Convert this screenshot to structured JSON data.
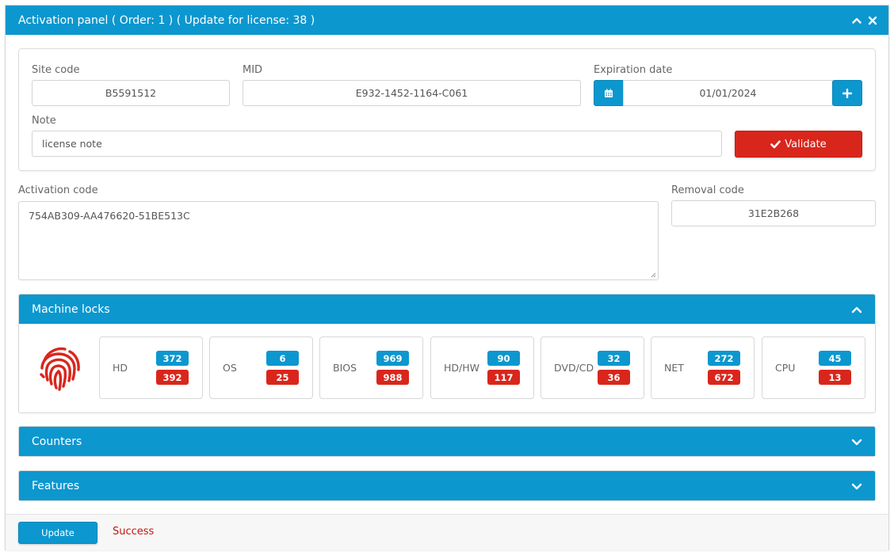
{
  "panel": {
    "title": "Activation panel ( Order: 1 ) ( Update for license: 38 )",
    "header_icons": [
      "chevron-up-icon",
      "close-icon"
    ]
  },
  "form": {
    "site_code_label": "Site code",
    "site_code_value": "B5591512",
    "mid_label": "MID",
    "mid_value": "E932-1452-1164-C061",
    "expiration_label": "Expiration date",
    "expiration_value": "01/01/2024",
    "note_label": "Note",
    "note_value": "license note",
    "validate_label": "Validate"
  },
  "codes": {
    "activation_label": "Activation code",
    "activation_value": "754AB309-AA476620-51BE513C",
    "removal_label": "Removal code",
    "removal_value": "31E2B268"
  },
  "machine_locks": {
    "title": "Machine locks",
    "items": [
      {
        "name": "HD",
        "top": "372",
        "bottom": "392"
      },
      {
        "name": "OS",
        "top": "6",
        "bottom": "25"
      },
      {
        "name": "BIOS",
        "top": "969",
        "bottom": "988"
      },
      {
        "name": "HD/HW",
        "top": "90",
        "bottom": "117"
      },
      {
        "name": "DVD/CD",
        "top": "32",
        "bottom": "36"
      },
      {
        "name": "NET",
        "top": "272",
        "bottom": "672"
      },
      {
        "name": "CPU",
        "top": "45",
        "bottom": "13"
      }
    ]
  },
  "counters": {
    "title": "Counters"
  },
  "features": {
    "title": "Features"
  },
  "footer": {
    "update_label": "Update",
    "status_text": "Success"
  },
  "colors": {
    "primary": "#0c97cf",
    "danger": "#d9261c",
    "status": "#c0170f"
  }
}
